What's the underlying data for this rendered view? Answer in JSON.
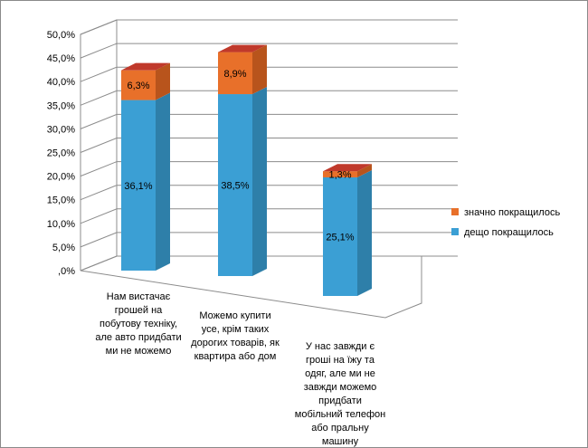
{
  "chart_data": {
    "type": "bar",
    "stacked": true,
    "three_d": true,
    "categories": [
      [
        "Нам вистачає",
        "грошей на",
        "побутову техніку,",
        "але авто придбати",
        "ми не можемо"
      ],
      [
        "Можемо купити",
        "усе, крім таких",
        "дорогих товарів, як",
        "квартира або дом"
      ],
      [
        "У нас завжди є",
        "гроші на їжу та",
        "одяг, але ми не",
        "завжди можемо",
        "придбати",
        "мобільний телефон",
        "або пральну",
        "машину"
      ]
    ],
    "series": [
      {
        "name": "дещо покращилось",
        "values": [
          36.1,
          38.5,
          25.1
        ],
        "labels": [
          "36,1%",
          "38,5%",
          "25,1%"
        ],
        "color": "#3b9fd4",
        "side_color": "#2e7fa9",
        "top_color": "#5ab5e6"
      },
      {
        "name": "значно покращилось",
        "values": [
          6.3,
          8.9,
          1.3
        ],
        "labels": [
          "6,3%",
          "8,9%",
          "1,3%"
        ],
        "color": "#e8702a",
        "side_color": "#b8541c",
        "top_color": "#c0392b"
      }
    ],
    "ylim": [
      0,
      50
    ],
    "yticks": [
      0,
      5,
      10,
      15,
      20,
      25,
      30,
      35,
      40,
      45,
      50
    ],
    "ytick_labels": [
      ",0%",
      "5,0%",
      "10,0%",
      "15,0%",
      "20,0%",
      "25,0%",
      "30,0%",
      "35,0%",
      "40,0%",
      "45,0%",
      "50,0%"
    ],
    "grid": true,
    "legend_position": "right",
    "legend_order": [
      "значно покращилось",
      "дещо покращилось"
    ],
    "title": "",
    "xlabel": "",
    "ylabel": ""
  }
}
